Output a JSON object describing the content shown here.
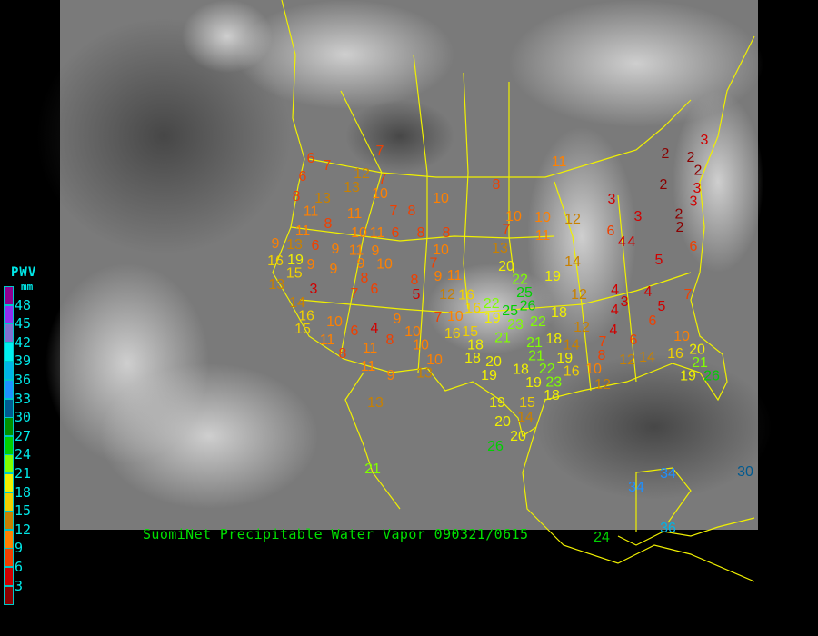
{
  "caption": "SuomiNet Precipitable Water Vapor 090321/0615",
  "legend": {
    "title": "PWV",
    "unit": "mm",
    "labels": [
      "48",
      "45",
      "42",
      "39",
      "36",
      "33",
      "30",
      "27",
      "24",
      "21",
      "18",
      "15",
      "12",
      "9",
      "6",
      "3"
    ],
    "colors": [
      "#900090",
      "#9030f0",
      "#8070d0",
      "#00f0f0",
      "#00b4e6",
      "#1e90ff",
      "#005a90",
      "#009000",
      "#00d000",
      "#80ff00",
      "#f0f000",
      "#f0d000",
      "#c88000",
      "#ff8000",
      "#f04000",
      "#d00000",
      "#8b0000"
    ]
  },
  "map": {
    "border_color": "#f0f000",
    "station_values": [
      6,
      7,
      7,
      12,
      6,
      7,
      13,
      10,
      10,
      8,
      13,
      11,
      7,
      8,
      11,
      8,
      11,
      10,
      11,
      6,
      8,
      8,
      9,
      13,
      6,
      9,
      11,
      9,
      10,
      7,
      16,
      19,
      9,
      9,
      9,
      10,
      15,
      13,
      8,
      8,
      9,
      11,
      3,
      7,
      6,
      5,
      12,
      16,
      14,
      16,
      15,
      10,
      7,
      10,
      6,
      4,
      9,
      10,
      16,
      15,
      11,
      8,
      10,
      11,
      18,
      8,
      10,
      11,
      9,
      13,
      13,
      13,
      14,
      20,
      22,
      19,
      25,
      26,
      12,
      16,
      22,
      25,
      18,
      19,
      23,
      22,
      12,
      21,
      21,
      18,
      18,
      14,
      20,
      21,
      19,
      18,
      22,
      16,
      19,
      19,
      10,
      23,
      18,
      12,
      19,
      15,
      14,
      20,
      20,
      26,
      8,
      7,
      4,
      4,
      3,
      4,
      4,
      5,
      6,
      7,
      10,
      6,
      12,
      14,
      16,
      20,
      21,
      19,
      26,
      4,
      5,
      6,
      11,
      8,
      3,
      2,
      2,
      2,
      2,
      3,
      3,
      3,
      3,
      2,
      2,
      10,
      10,
      12,
      7,
      6,
      11,
      4,
      21,
      24,
      34,
      34,
      30,
      36
    ]
  }
}
